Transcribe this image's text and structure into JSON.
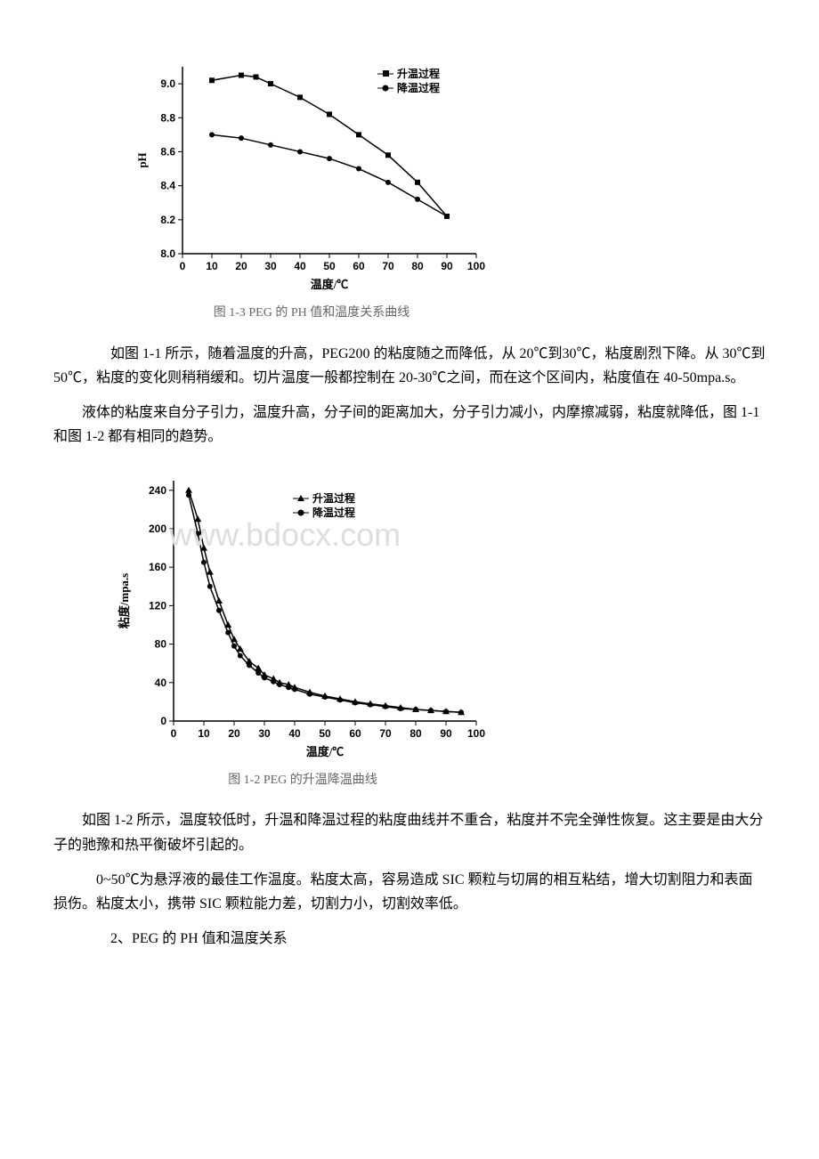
{
  "chart1": {
    "type": "line",
    "caption": "图 1-3 PEG 的 PH 值和温度关系曲线",
    "xlabel": "温度/℃",
    "ylabel": "pH",
    "xlim": [
      0,
      100
    ],
    "ylim": [
      8.0,
      9.1
    ],
    "xticks": [
      0,
      10,
      20,
      30,
      40,
      50,
      60,
      70,
      80,
      90,
      100
    ],
    "yticks": [
      8.0,
      8.2,
      8.4,
      8.6,
      8.8,
      9.0
    ],
    "xtick_labels": [
      "0",
      "10",
      "20",
      "30",
      "40",
      "50",
      "60",
      "70",
      "80",
      "90",
      "100"
    ],
    "ytick_labels": [
      "8.0",
      "8.2",
      "8.4",
      "8.6",
      "8.8",
      "9.0"
    ],
    "legend": {
      "items": [
        {
          "label": "升温过程",
          "marker": "square"
        },
        {
          "label": "降温过程",
          "marker": "circle"
        }
      ],
      "position": "top-right"
    },
    "series": [
      {
        "name": "升温过程",
        "marker": "square",
        "color": "#000000",
        "line_width": 1.5,
        "x": [
          10,
          20,
          25,
          30,
          40,
          50,
          60,
          70,
          80,
          90
        ],
        "y": [
          9.02,
          9.05,
          9.04,
          9.0,
          8.92,
          8.82,
          8.7,
          8.58,
          8.42,
          8.22
        ]
      },
      {
        "name": "降温过程",
        "marker": "circle",
        "color": "#000000",
        "line_width": 1.5,
        "x": [
          10,
          20,
          30,
          40,
          50,
          60,
          70,
          80,
          90
        ],
        "y": [
          8.7,
          8.68,
          8.64,
          8.6,
          8.56,
          8.5,
          8.42,
          8.32,
          8.22
        ]
      }
    ],
    "background_color": "#ffffff",
    "axis_color": "#000000",
    "label_fontsize": 13,
    "tick_fontsize": 12
  },
  "chart2": {
    "type": "line",
    "caption": "图 1-2 PEG 的升温降温曲线",
    "xlabel": "温度/℃",
    "ylabel": "粘度/mpa.s",
    "xlim": [
      0,
      100
    ],
    "ylim": [
      0,
      250
    ],
    "xticks": [
      0,
      10,
      20,
      30,
      40,
      50,
      60,
      70,
      80,
      90,
      100
    ],
    "yticks": [
      0,
      40,
      80,
      120,
      160,
      200,
      240
    ],
    "xtick_labels": [
      "0",
      "10",
      "20",
      "30",
      "40",
      "50",
      "60",
      "70",
      "80",
      "90",
      "100"
    ],
    "ytick_labels": [
      "0",
      "40",
      "80",
      "120",
      "160",
      "200",
      "240"
    ],
    "legend": {
      "items": [
        {
          "label": "升温过程",
          "marker": "triangle"
        },
        {
          "label": "降温过程",
          "marker": "circle"
        }
      ],
      "position": "top-center"
    },
    "series": [
      {
        "name": "升温过程",
        "marker": "triangle",
        "color": "#000000",
        "line_width": 1.5,
        "x": [
          5,
          8,
          10,
          12,
          15,
          18,
          20,
          22,
          25,
          28,
          30,
          33,
          35,
          38,
          40,
          45,
          50,
          55,
          60,
          65,
          70,
          75,
          80,
          85,
          90,
          95
        ],
        "y": [
          240,
          210,
          180,
          155,
          125,
          100,
          85,
          75,
          62,
          55,
          48,
          44,
          40,
          38,
          35,
          30,
          26,
          23,
          20,
          18,
          16,
          14,
          12,
          11,
          10,
          9
        ]
      },
      {
        "name": "降温过程",
        "marker": "circle",
        "color": "#000000",
        "line_width": 1.5,
        "x": [
          5,
          8,
          10,
          12,
          15,
          18,
          20,
          22,
          25,
          28,
          30,
          33,
          35,
          38,
          40,
          45,
          50,
          55,
          60,
          65,
          70,
          75,
          80,
          85,
          90,
          95
        ],
        "y": [
          235,
          195,
          165,
          140,
          115,
          92,
          78,
          68,
          58,
          50,
          45,
          41,
          38,
          35,
          33,
          28,
          25,
          22,
          19,
          17,
          15,
          13,
          12,
          11,
          10,
          9
        ]
      }
    ],
    "background_color": "#ffffff",
    "axis_color": "#000000",
    "label_fontsize": 13,
    "tick_fontsize": 12,
    "watermark": "www.bdocx.com"
  },
  "paragraphs": {
    "p1": "如图 1-1 所示，随着温度的升高，PEG200 的粘度随之而降低，从 20℃到30℃，粘度剧烈下降。从 30℃到 50℃，粘度的变化则稍稍缓和。切片温度一般都控制在 20-30℃之间，而在这个区间内，粘度值在 40-50mpa.s。",
    "p2": "液体的粘度来自分子引力，温度升高，分子间的距离加大，分子引力减小，内摩擦减弱，粘度就降低，图 1-1 和图 1-2 都有相同的趋势。",
    "p3": "如图 1-2 所示，温度较低时，升温和降温过程的粘度曲线并不重合，粘度并不完全弹性恢复。这主要是由大分子的驰豫和热平衡破坏引起的。",
    "p4": "0~50℃为悬浮液的最佳工作温度。粘度太高，容易造成 SIC 颗粒与切屑的相互粘结，增大切割阻力和表面损伤。粘度太小，携带 SIC 颗粒能力差，切割力小，切割效率低。",
    "p5": "2、PEG 的 PH 值和温度关系"
  }
}
